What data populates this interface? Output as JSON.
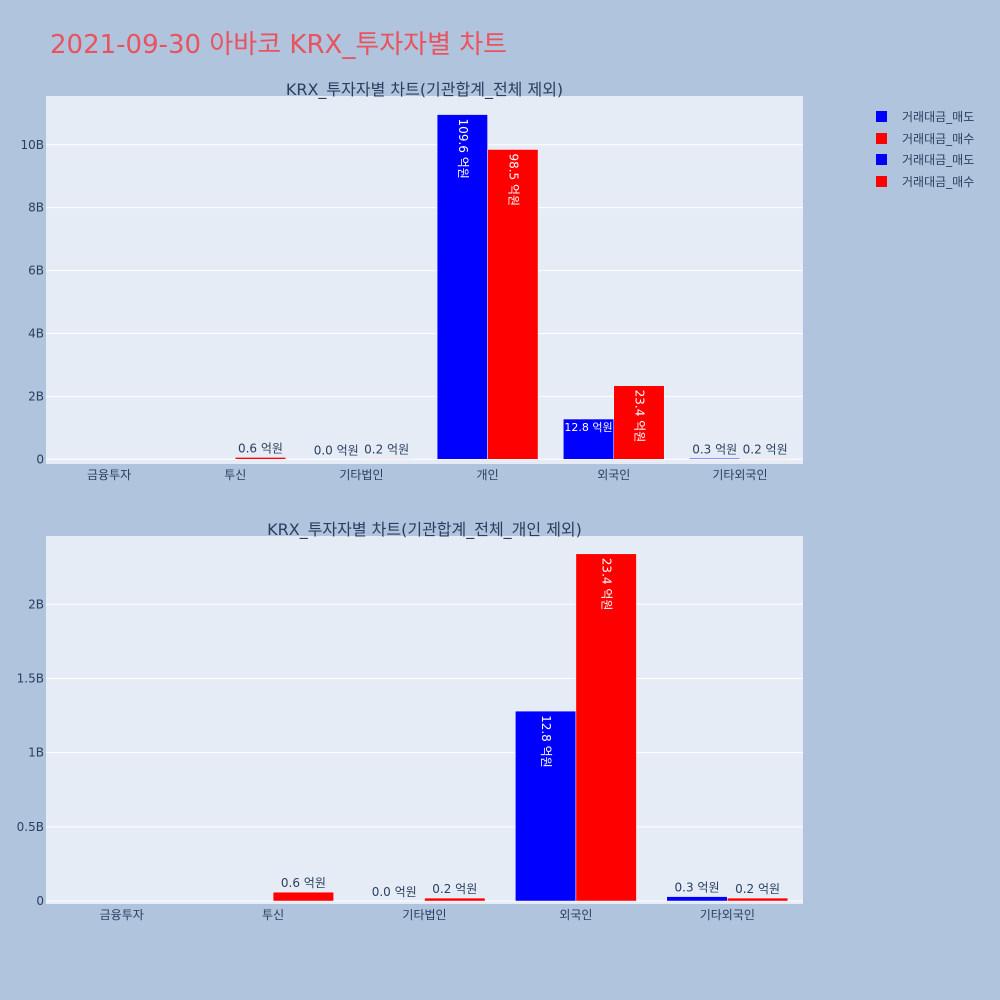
{
  "page_title": "2021-09-30 아바코 KRX_투자자별 차트",
  "legend": [
    {
      "label": "거래대금_매도",
      "color": "#0000ff"
    },
    {
      "label": "거래대금_매수",
      "color": "#ff0000"
    },
    {
      "label": "거래대금_매도",
      "color": "#0000ff"
    },
    {
      "label": "거래대금_매수",
      "color": "#ff0000"
    }
  ],
  "chart_data": [
    {
      "type": "bar",
      "title": "KRX_투자자별 차트(기관합계_전체 제외)",
      "categories": [
        "금융투자",
        "투신",
        "기타법인",
        "개인",
        "외국인",
        "기타외국인"
      ],
      "series": [
        {
          "name": "거래대금_매도",
          "color": "#0000ff",
          "values": [
            0,
            0,
            0,
            10960000000,
            1280000000,
            30000000
          ],
          "labels": [
            "",
            "",
            "0.0 억원",
            "109.6 억원",
            "12.8 억원",
            "0.3 억원"
          ]
        },
        {
          "name": "거래대금_매수",
          "color": "#ff0000",
          "values": [
            0,
            60000000,
            20000000,
            9850000000,
            2340000000,
            20000000
          ],
          "labels": [
            "",
            "0.6 억원",
            "0.2 억원",
            "98.5 억원",
            "23.4 억원",
            "0.2 억원"
          ]
        }
      ],
      "yticks": [
        0,
        2000000000,
        4000000000,
        6000000000,
        8000000000,
        10000000000
      ],
      "ytick_labels": [
        "0",
        "2B",
        "4B",
        "6B",
        "8B",
        "10B"
      ],
      "ylim": [
        -150000000,
        11550000000
      ]
    },
    {
      "type": "bar",
      "title": "KRX_투자자별 차트(기관합계_전체_개인 제외)",
      "categories": [
        "금융투자",
        "투신",
        "기타법인",
        "외국인",
        "기타외국인"
      ],
      "series": [
        {
          "name": "거래대금_매도",
          "color": "#0000ff",
          "values": [
            0,
            0,
            0,
            1280000000,
            30000000
          ],
          "labels": [
            "",
            "",
            "0.0 억원",
            "12.8 억원",
            "0.3 억원"
          ]
        },
        {
          "name": "거래대금_매수",
          "color": "#ff0000",
          "values": [
            0,
            60000000,
            20000000,
            2340000000,
            20000000
          ],
          "labels": [
            "",
            "0.6 억원",
            "0.2 억원",
            "23.4 억원",
            "0.2 억원"
          ]
        }
      ],
      "yticks": [
        0,
        500000000,
        1000000000,
        1500000000,
        2000000000
      ],
      "ytick_labels": [
        "0",
        "0.5B",
        "1B",
        "1.5B",
        "2B"
      ],
      "ylim": [
        -20000000,
        2460000000
      ]
    }
  ]
}
